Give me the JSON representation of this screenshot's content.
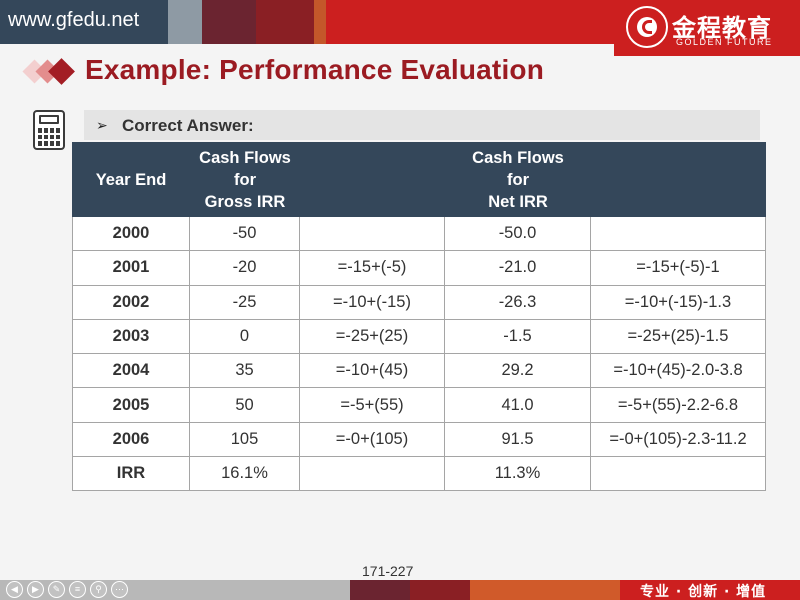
{
  "header": {
    "site_url": "www.gfedu.net",
    "logo_cn": "金程教育",
    "logo_en": "GOLDEN FUTURE"
  },
  "title": "Example: Performance Evaluation",
  "answer": {
    "arrow": "➢",
    "label": "Correct Answer:"
  },
  "table": {
    "headers": {
      "year_end": "Year End",
      "gross": [
        "Cash Flows",
        "for",
        "Gross IRR"
      ],
      "net": [
        "Cash Flows",
        "for",
        "Net IRR"
      ]
    },
    "rows": [
      {
        "year": "2000",
        "gross": "-50",
        "gross_calc": "",
        "net": "-50.0",
        "net_calc": ""
      },
      {
        "year": "2001",
        "gross": "-20",
        "gross_calc": "=-15+(-5)",
        "net": "-21.0",
        "net_calc": "=-15+(-5)-1"
      },
      {
        "year": "2002",
        "gross": "-25",
        "gross_calc": "=-10+(-15)",
        "net": "-26.3",
        "net_calc": "=-10+(-15)-1.3"
      },
      {
        "year": "2003",
        "gross": "0",
        "gross_calc": "=-25+(25)",
        "net": "-1.5",
        "net_calc": "=-25+(25)-1.5"
      },
      {
        "year": "2004",
        "gross": "35",
        "gross_calc": "=-10+(45)",
        "net": "29.2",
        "net_calc": "=-10+(45)-2.0-3.8"
      },
      {
        "year": "2005",
        "gross": "50",
        "gross_calc": "=-5+(55)",
        "net": "41.0",
        "net_calc": "=-5+(55)-2.2-6.8"
      },
      {
        "year": "2006",
        "gross": "105",
        "gross_calc": "=-0+(105)",
        "net": "91.5",
        "net_calc": "=-0+(105)-2.3-11.2"
      },
      {
        "year": "IRR",
        "gross": "16.1%",
        "gross_calc": "",
        "net": "11.3%",
        "net_calc": ""
      }
    ]
  },
  "footer": {
    "page": "171-227",
    "slogan": "专业 · 创新 · 增值"
  },
  "colors": {
    "brand_red": "#cc1f1f",
    "title_red": "#9b1b22",
    "header_navy": "#34475a"
  },
  "icons": [
    "calculator-icon",
    "diamond-bullet-icon",
    "arrow-bullet-icon",
    "logo-seal-icon"
  ]
}
